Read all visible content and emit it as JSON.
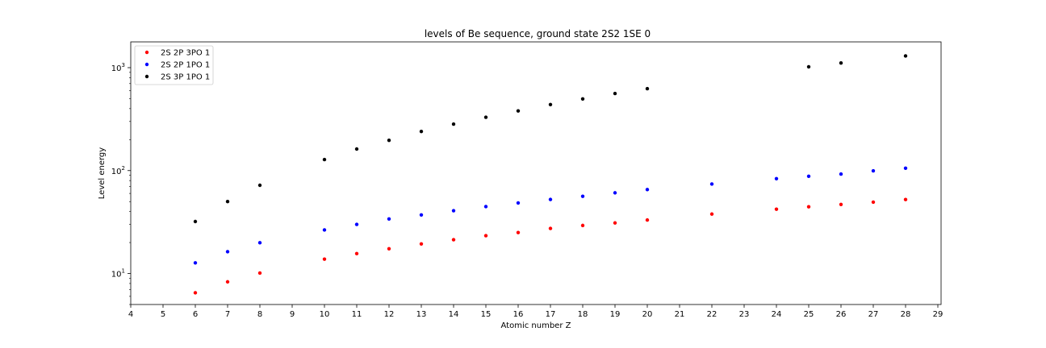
{
  "chart_data": {
    "type": "scatter",
    "title": "levels of Be sequence, ground state 2S2 1SE 0",
    "xlabel": "Atomic number Z",
    "ylabel": "Level energy",
    "xlim": [
      4,
      29.1
    ],
    "ylim": [
      5,
      1780
    ],
    "yscale": "log",
    "x_ticks": [
      4,
      5,
      6,
      7,
      8,
      9,
      10,
      11,
      12,
      13,
      14,
      15,
      16,
      17,
      18,
      19,
      20,
      21,
      22,
      23,
      24,
      25,
      26,
      27,
      28,
      29
    ],
    "y_ticks": [
      {
        "value": 10,
        "base": "10",
        "exp": "1"
      },
      {
        "value": 100,
        "base": "10",
        "exp": "2"
      },
      {
        "value": 1000,
        "base": "10",
        "exp": "3"
      }
    ],
    "grid": false,
    "legend_position": "top-left",
    "series": [
      {
        "name": "2S 2P 3PO 1",
        "color": "#ff0000",
        "points": [
          [
            6,
            6.5
          ],
          [
            7,
            8.3
          ],
          [
            8,
            10.1
          ],
          [
            10,
            13.8
          ],
          [
            11,
            15.6
          ],
          [
            12,
            17.4
          ],
          [
            13,
            19.4
          ],
          [
            14,
            21.3
          ],
          [
            15,
            23.3
          ],
          [
            16,
            25.0
          ],
          [
            17,
            27.4
          ],
          [
            18,
            29.3
          ],
          [
            19,
            31.0
          ],
          [
            20,
            33.1
          ],
          [
            22,
            37.8
          ],
          [
            24,
            42.2
          ],
          [
            25,
            44.5
          ],
          [
            26,
            46.9
          ],
          [
            27,
            49.4
          ],
          [
            28,
            52.3
          ]
        ]
      },
      {
        "name": "2S 2P 1PO 1",
        "color": "#0000ff",
        "points": [
          [
            6,
            12.7
          ],
          [
            7,
            16.3
          ],
          [
            8,
            19.9
          ],
          [
            10,
            26.5
          ],
          [
            11,
            30.0
          ],
          [
            12,
            33.9
          ],
          [
            13,
            37.1
          ],
          [
            14,
            40.8
          ],
          [
            15,
            44.7
          ],
          [
            16,
            48.5
          ],
          [
            17,
            52.4
          ],
          [
            18,
            56.3
          ],
          [
            19,
            60.8
          ],
          [
            20,
            65.4
          ],
          [
            22,
            74.0
          ],
          [
            24,
            83.5
          ],
          [
            25,
            88.0
          ],
          [
            26,
            92.5
          ],
          [
            27,
            99.5
          ],
          [
            28,
            105.5
          ]
        ]
      },
      {
        "name": "2S 3P 1PO 1",
        "color": "#000000",
        "points": [
          [
            6,
            32
          ],
          [
            7,
            50
          ],
          [
            8,
            72
          ],
          [
            10,
            128
          ],
          [
            11,
            162
          ],
          [
            12,
            197
          ],
          [
            13,
            240
          ],
          [
            14,
            283
          ],
          [
            15,
            330
          ],
          [
            16,
            380
          ],
          [
            17,
            438
          ],
          [
            18,
            497
          ],
          [
            19,
            561
          ],
          [
            20,
            625
          ],
          [
            25,
            1020
          ],
          [
            26,
            1110
          ],
          [
            28,
            1300
          ]
        ]
      }
    ]
  }
}
